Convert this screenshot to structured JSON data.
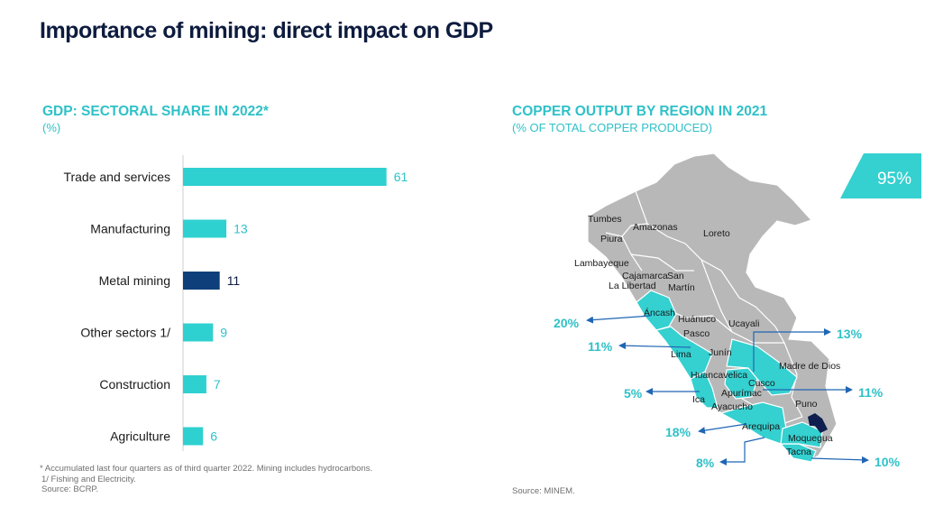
{
  "page": {
    "title": "Importance of mining: direct impact on GDP"
  },
  "left_panel": {
    "title": "GDP: SECTORAL SHARE IN 2022*",
    "subtitle": "(%)",
    "notes": [
      "* Accumulated last four quarters as of third quarter 2022. Mining includes hydrocarbons.",
      "1/ Fishing and Electricity.",
      "Source: BCRP."
    ]
  },
  "right_panel": {
    "title": "COPPER OUTPUT BY REGION IN 2021",
    "subtitle": "(% OF TOTAL COPPER PRODUCED)",
    "source": "Source: MINEM.",
    "total_badge": "95%"
  },
  "chart_data": [
    {
      "type": "bar",
      "orientation": "horizontal",
      "categories": [
        "Trade and services",
        "Manufacturing",
        "Metal mining",
        "Other sectors 1/",
        "Construction",
        "Agriculture"
      ],
      "values": [
        61,
        13,
        11,
        9,
        7,
        6
      ],
      "data_labels": [
        "61",
        "13",
        "11",
        "9",
        "7",
        "6"
      ],
      "highlight": "Metal mining",
      "colors": {
        "default": "#2fd0d0",
        "highlight": "#0e3f7a",
        "label_default": "#2fc1c8",
        "label_highlight": "#0d1b3e"
      }
    },
    {
      "type": "map",
      "region_labels": [
        "Tumbes",
        "Amazonas",
        "Piura",
        "Loreto",
        "Lambayeque",
        "Cajamarca",
        "San",
        "Martín",
        "La Libertad",
        "Áncash",
        "Huánuco",
        "Ucayali",
        "Pasco",
        "Junín",
        "Lima",
        "Madre de Dios",
        "Huancavelica",
        "Cusco",
        "Apurímac",
        "Ica",
        "Ayacucho",
        "Puno",
        "Arequipa",
        "Moquegua",
        "Tacna"
      ],
      "callouts": [
        {
          "region": "Áncash",
          "value": "20%"
        },
        {
          "region": "Lima",
          "value": "11%"
        },
        {
          "region": "Ica",
          "value": "5%"
        },
        {
          "region": "Arequipa",
          "value": "18%"
        },
        {
          "region": "Tacna",
          "value": "8%"
        },
        {
          "region": "Cusco",
          "value": "13%"
        },
        {
          "region": "Apurímac",
          "value": "11%"
        },
        {
          "region": "Moquegua",
          "value": "10%"
        }
      ],
      "colors": {
        "producing": "#35d0d0",
        "other": "#b8b8b8",
        "callout": "#2fc1c8",
        "arrow": "#1f66b4",
        "badge": "#35d0d0",
        "moquegua_mark": "#0e1e4e"
      }
    }
  ]
}
